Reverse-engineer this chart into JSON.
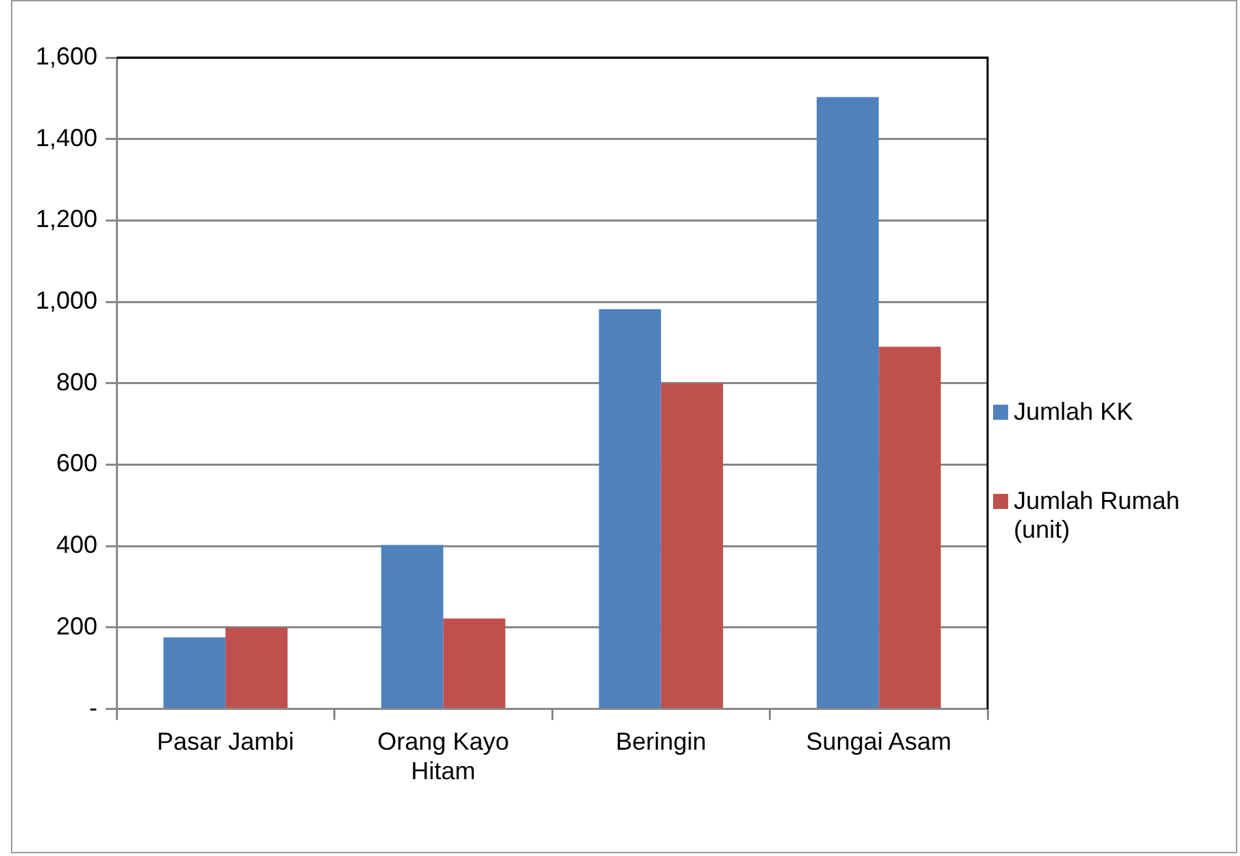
{
  "chart_data": {
    "type": "bar",
    "categories": [
      "Pasar Jambi",
      "Orang Kayo Hitam",
      "Beringin",
      "Sungai Asam"
    ],
    "series": [
      {
        "name": "Jumlah KK",
        "color": "#4f81bd",
        "values": [
          176,
          403,
          982,
          1503
        ]
      },
      {
        "name": "Jumlah Rumah (unit)",
        "color": "#c0504d",
        "values": [
          200,
          222,
          800,
          890
        ]
      }
    ],
    "ylim": [
      0,
      1600
    ],
    "yticks": [
      {
        "value": 0,
        "label": "-"
      },
      200,
      400,
      600,
      800,
      {
        "value": 1000,
        "label": "1,000"
      },
      {
        "value": 1200,
        "label": "1,200"
      },
      {
        "value": 1400,
        "label": "1,400"
      },
      {
        "value": 1600,
        "label": "1,600"
      }
    ],
    "grid": "y",
    "legend": "right"
  }
}
